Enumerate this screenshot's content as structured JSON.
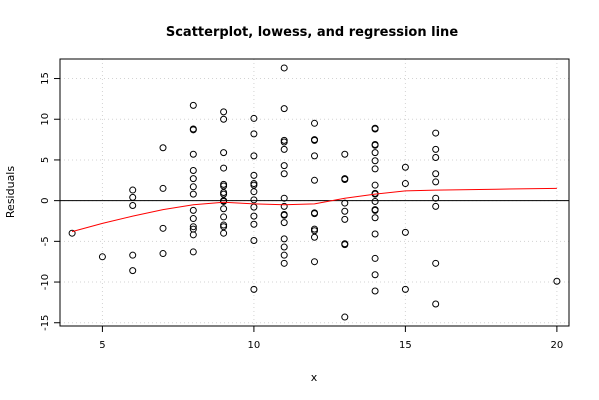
{
  "chart_data": {
    "type": "scatter",
    "title": "Scatterplot, lowess, and regression line",
    "xlabel": "x",
    "ylabel": "Residuals",
    "xlim": [
      3.6,
      20.4
    ],
    "ylim": [
      -15.4,
      17.4
    ],
    "x_ticks": [
      5,
      10,
      15,
      20
    ],
    "y_ticks": [
      -15,
      -10,
      -5,
      0,
      5,
      10,
      15
    ],
    "grid": true,
    "colors": {
      "points": "#000000",
      "lowess": "#ff0000",
      "regression": "#000000",
      "grid": "#d3d3d3"
    },
    "points": [
      [
        4,
        -4.0
      ],
      [
        5,
        -6.9
      ],
      [
        6,
        1.3
      ],
      [
        6,
        0.4
      ],
      [
        6,
        -0.6
      ],
      [
        6,
        -6.7
      ],
      [
        6,
        -8.6
      ],
      [
        7,
        6.5
      ],
      [
        7,
        1.5
      ],
      [
        7,
        -3.4
      ],
      [
        7,
        -6.5
      ],
      [
        8,
        11.7
      ],
      [
        8,
        8.8
      ],
      [
        8,
        8.7
      ],
      [
        8,
        5.7
      ],
      [
        8,
        3.7
      ],
      [
        8,
        2.7
      ],
      [
        8,
        1.7
      ],
      [
        8,
        0.8
      ],
      [
        8,
        -1.2
      ],
      [
        8,
        -2.2
      ],
      [
        8,
        -3.2
      ],
      [
        8,
        -3.5
      ],
      [
        8,
        -4.2
      ],
      [
        8,
        -6.3
      ],
      [
        9,
        10.9
      ],
      [
        9,
        10.0
      ],
      [
        9,
        5.9
      ],
      [
        9,
        4.0
      ],
      [
        9,
        2.0
      ],
      [
        9,
        1.8
      ],
      [
        9,
        1.0
      ],
      [
        9,
        0.8
      ],
      [
        9,
        0.0
      ],
      [
        9,
        -0.1
      ],
      [
        9,
        -1.0
      ],
      [
        9,
        -2.0
      ],
      [
        9,
        -3.0
      ],
      [
        9,
        -3.2
      ],
      [
        9,
        -4.0
      ],
      [
        10,
        10.1
      ],
      [
        10,
        8.2
      ],
      [
        10,
        5.5
      ],
      [
        10,
        3.1
      ],
      [
        10,
        2.1
      ],
      [
        10,
        1.9
      ],
      [
        10,
        1.1
      ],
      [
        10,
        0.1
      ],
      [
        10,
        -0.8
      ],
      [
        10,
        -1.9
      ],
      [
        10,
        -2.9
      ],
      [
        10,
        -4.9
      ],
      [
        10,
        -10.9
      ],
      [
        11,
        16.3
      ],
      [
        11,
        11.3
      ],
      [
        11,
        7.4
      ],
      [
        11,
        7.2
      ],
      [
        11,
        6.3
      ],
      [
        11,
        4.3
      ],
      [
        11,
        3.3
      ],
      [
        11,
        0.3
      ],
      [
        11,
        -0.7
      ],
      [
        11,
        -1.7
      ],
      [
        11,
        -1.8
      ],
      [
        11,
        -2.7
      ],
      [
        11,
        -4.7
      ],
      [
        11,
        -5.7
      ],
      [
        11,
        -6.7
      ],
      [
        11,
        -7.7
      ],
      [
        12,
        9.5
      ],
      [
        12,
        7.5
      ],
      [
        12,
        7.4
      ],
      [
        12,
        5.5
      ],
      [
        12,
        2.5
      ],
      [
        12,
        -1.5
      ],
      [
        12,
        -1.6
      ],
      [
        12,
        -3.5
      ],
      [
        12,
        -3.7
      ],
      [
        12,
        -4.5
      ],
      [
        12,
        -7.5
      ],
      [
        13,
        5.7
      ],
      [
        13,
        2.7
      ],
      [
        13,
        2.6
      ],
      [
        13,
        -0.3
      ],
      [
        13,
        -1.3
      ],
      [
        13,
        -2.3
      ],
      [
        13,
        -5.3
      ],
      [
        13,
        -5.4
      ],
      [
        13,
        -14.3
      ],
      [
        14,
        8.9
      ],
      [
        14,
        8.8
      ],
      [
        14,
        6.9
      ],
      [
        14,
        6.8
      ],
      [
        14,
        5.9
      ],
      [
        14,
        4.9
      ],
      [
        14,
        3.9
      ],
      [
        14,
        1.9
      ],
      [
        14,
        0.9
      ],
      [
        14,
        0.8
      ],
      [
        14,
        -0.1
      ],
      [
        14,
        -1.1
      ],
      [
        14,
        -1.2
      ],
      [
        14,
        -2.1
      ],
      [
        14,
        -4.1
      ],
      [
        14,
        -7.1
      ],
      [
        14,
        -9.1
      ],
      [
        14,
        -11.1
      ],
      [
        15,
        4.1
      ],
      [
        15,
        2.1
      ],
      [
        15,
        -3.9
      ],
      [
        15,
        -10.9
      ],
      [
        16,
        8.3
      ],
      [
        16,
        6.3
      ],
      [
        16,
        5.3
      ],
      [
        16,
        3.3
      ],
      [
        16,
        2.3
      ],
      [
        16,
        0.3
      ],
      [
        16,
        -0.7
      ],
      [
        16,
        -7.7
      ],
      [
        16,
        -12.7
      ],
      [
        20,
        -9.9
      ]
    ],
    "lowess": [
      [
        4,
        -3.8
      ],
      [
        5,
        -2.8
      ],
      [
        6,
        -1.9
      ],
      [
        7,
        -1.1
      ],
      [
        8,
        -0.5
      ],
      [
        9,
        -0.2
      ],
      [
        10,
        -0.4
      ],
      [
        11,
        -0.5
      ],
      [
        12,
        -0.4
      ],
      [
        13,
        0.3
      ],
      [
        14,
        0.8
      ],
      [
        15,
        1.2
      ],
      [
        16,
        1.3
      ],
      [
        18,
        1.4
      ],
      [
        20,
        1.5
      ]
    ],
    "regression_y": 0
  }
}
